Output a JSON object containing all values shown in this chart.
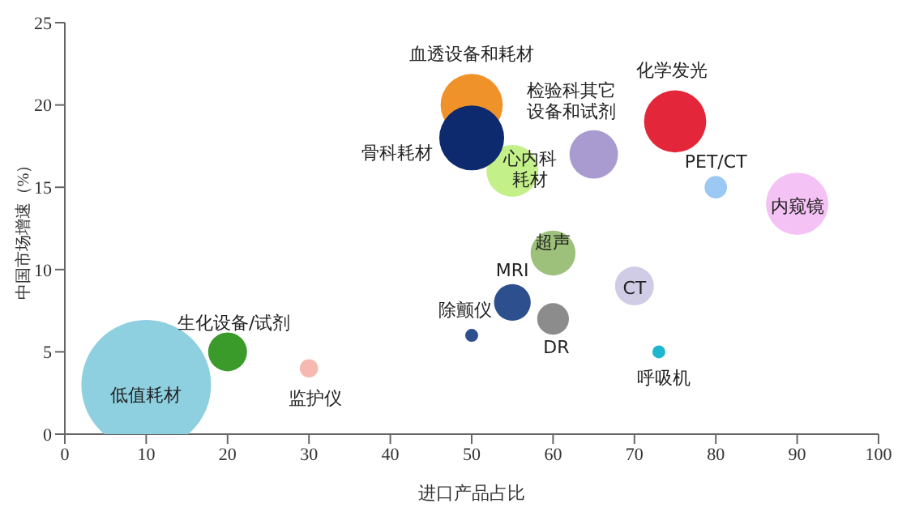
{
  "chart_data": {
    "type": "bubble",
    "xlabel": "进口产品占比",
    "ylabel": "中国市场增速（%）",
    "xlim": [
      0,
      100
    ],
    "xticks": [
      0,
      10,
      20,
      30,
      40,
      50,
      60,
      70,
      80,
      90,
      100
    ],
    "ylim": [
      0,
      25
    ],
    "yticks": [
      0,
      5,
      10,
      15,
      20,
      25
    ],
    "grid": false,
    "series": [
      {
        "name": "低值耗材",
        "color": "#8ecfe0",
        "x": [
          10
        ],
        "values": [
          3
        ],
        "sizes": [
          1
        ]
      },
      {
        "name": "生化设备/试剂",
        "color": "#3a9a2a",
        "x": [
          20
        ],
        "values": [
          5
        ],
        "sizes": [
          0.09
        ]
      },
      {
        "name": "监护仪",
        "color": "#f6b9b0",
        "x": [
          30
        ],
        "values": [
          4
        ],
        "sizes": [
          0.02
        ]
      },
      {
        "name": "血透设备和耗材",
        "color": "#f0922a",
        "x": [
          50
        ],
        "values": [
          20
        ],
        "sizes": [
          0.23
        ]
      },
      {
        "name": "心内科耗材",
        "color": "#c4f08a",
        "x": [
          55
        ],
        "values": [
          16
        ],
        "sizes": [
          0.16
        ]
      },
      {
        "name": "骨科耗材",
        "color": "#0d2a6e",
        "x": [
          50
        ],
        "values": [
          18
        ],
        "sizes": [
          0.25
        ]
      },
      {
        "name": "检验科其它设备和试剂",
        "color": "#a99bd0",
        "x": [
          65
        ],
        "values": [
          17
        ],
        "sizes": [
          0.14
        ]
      },
      {
        "name": "化学发光",
        "color": "#e3263a",
        "x": [
          75
        ],
        "values": [
          19
        ],
        "sizes": [
          0.23
        ]
      },
      {
        "name": "PET/CT",
        "color": "#9cc8f4",
        "x": [
          80
        ],
        "values": [
          15
        ],
        "sizes": [
          0.03
        ]
      },
      {
        "name": "内窥镜",
        "color": "#f4c2f4",
        "x": [
          90
        ],
        "values": [
          14
        ],
        "sizes": [
          0.23
        ]
      },
      {
        "name": "超声",
        "color": "#9dc07a",
        "x": [
          60
        ],
        "values": [
          11
        ],
        "sizes": [
          0.12
        ]
      },
      {
        "name": "MRI",
        "color": "#2e4f8e",
        "x": [
          55
        ],
        "values": [
          8
        ],
        "sizes": [
          0.08
        ]
      },
      {
        "name": "除颤仪",
        "color": "#2e4f8e",
        "x": [
          50
        ],
        "values": [
          6
        ],
        "sizes": [
          0.01
        ]
      },
      {
        "name": "DR",
        "color": "#8c8c8c",
        "x": [
          60
        ],
        "values": [
          7
        ],
        "sizes": [
          0.06
        ]
      },
      {
        "name": "CT",
        "color": "#d0cce6",
        "x": [
          70
        ],
        "values": [
          9
        ],
        "sizes": [
          0.09
        ]
      },
      {
        "name": "呼吸机",
        "color": "#1fb6d0",
        "x": [
          73
        ],
        "values": [
          5
        ],
        "sizes": [
          0.01
        ]
      }
    ]
  }
}
